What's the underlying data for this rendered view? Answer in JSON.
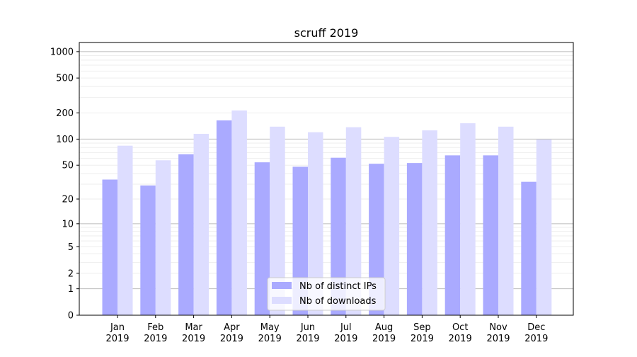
{
  "chart_data": {
    "type": "bar",
    "title": "scruff 2019",
    "xlabel": "",
    "ylabel": "",
    "yscale": "log(1+y)",
    "ylim": [
      0,
      1270
    ],
    "yticks": [
      0,
      1,
      2,
      5,
      10,
      20,
      50,
      100,
      200,
      500,
      1000
    ],
    "grid": true,
    "legend_placement": "bottom-center",
    "categories": [
      "Jan\n2019",
      "Feb\n2019",
      "Mar\n2019",
      "Apr\n2019",
      "May\n2019",
      "Jun\n2019",
      "Jul\n2019",
      "Aug\n2019",
      "Sep\n2019",
      "Oct\n2019",
      "Nov\n2019",
      "Dec\n2019"
    ],
    "series": [
      {
        "name": "Nb of distinct IPs",
        "color": "#aaaaff",
        "values": [
          34,
          29,
          67,
          164,
          54,
          48,
          61,
          52,
          53,
          65,
          65,
          32
        ]
      },
      {
        "name": "Nb of downloads",
        "color": "#ddddff",
        "values": [
          84,
          57,
          115,
          213,
          139,
          120,
          137,
          106,
          126,
          152,
          139,
          99
        ]
      }
    ]
  }
}
